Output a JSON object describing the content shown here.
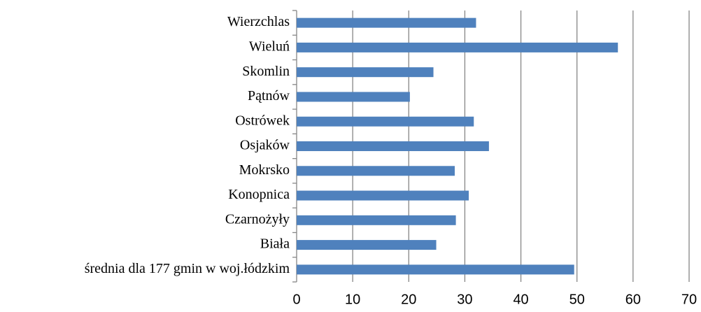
{
  "chart_data": {
    "type": "bar",
    "orientation": "horizontal",
    "categories": [
      "Wierzchlas",
      "Wieluń",
      "Skomlin",
      "Pątnów",
      "Ostrówek",
      "Osjaków",
      "Mokrsko",
      "Konopnica",
      "Czarnożyły",
      "Biała",
      "średnia dla 177 gmin w woj.łódzkim"
    ],
    "values": [
      32.0,
      57.3,
      24.4,
      20.2,
      31.6,
      34.3,
      28.2,
      30.7,
      28.4,
      24.9,
      49.5
    ],
    "color": "#4f81bd",
    "xlim": [
      0,
      70
    ],
    "xticks": [
      0,
      10,
      20,
      30,
      40,
      50,
      60,
      70
    ],
    "grid": true
  }
}
